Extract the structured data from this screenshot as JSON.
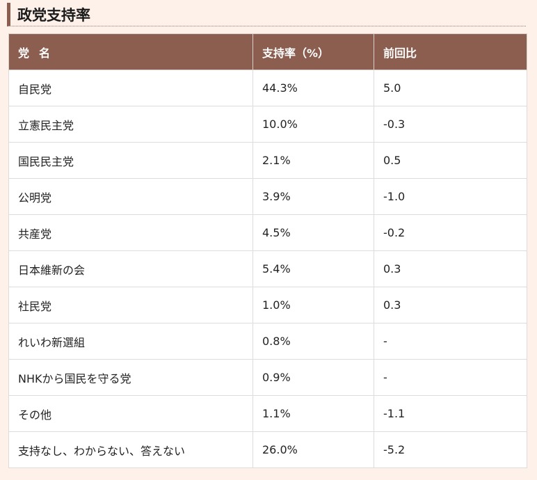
{
  "section": {
    "title": "政党支持率"
  },
  "table": {
    "headers": {
      "party": "党名",
      "rate": "支持率（%）",
      "change": "前回比"
    },
    "rows": [
      {
        "party": "自民党",
        "rate": "44.3%",
        "change": "5.0"
      },
      {
        "party": "立憲民主党",
        "rate": "10.0%",
        "change": "-0.3"
      },
      {
        "party": "国民民主党",
        "rate": "2.1%",
        "change": "0.5"
      },
      {
        "party": "公明党",
        "rate": "3.9%",
        "change": "-1.0"
      },
      {
        "party": "共産党",
        "rate": "4.5%",
        "change": "-0.2"
      },
      {
        "party": "日本維新の会",
        "rate": "5.4%",
        "change": "0.3"
      },
      {
        "party": "社民党",
        "rate": "1.0%",
        "change": "0.3"
      },
      {
        "party": "れいわ新選組",
        "rate": "0.8%",
        "change": "-"
      },
      {
        "party": "NHKから国民を守る党",
        "rate": "0.9%",
        "change": "-"
      },
      {
        "party": "その他",
        "rate": "1.1%",
        "change": "-1.1"
      },
      {
        "party": "支持なし、わからない、答えない",
        "rate": "26.0%",
        "change": "-5.2"
      }
    ]
  }
}
